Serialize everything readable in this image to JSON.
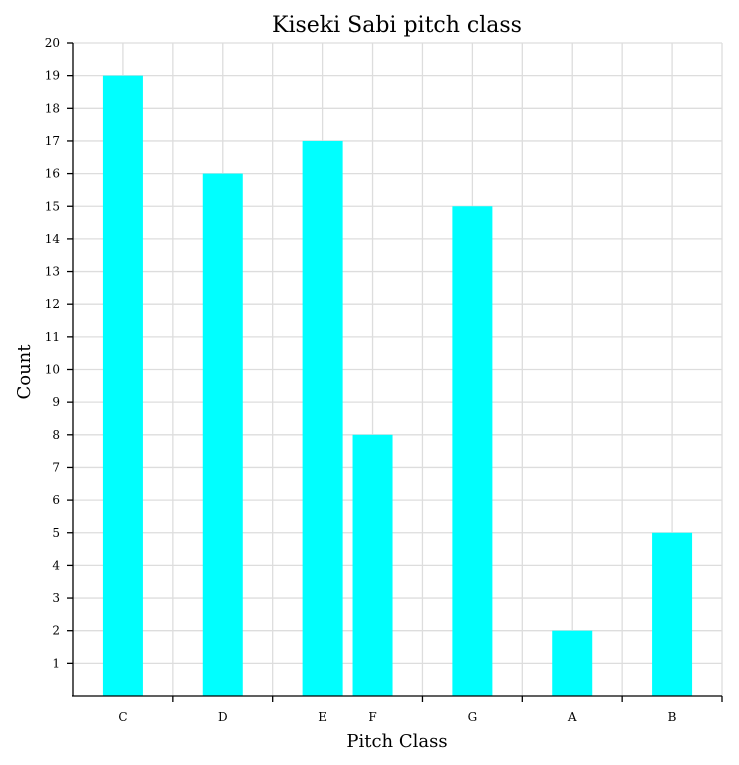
{
  "chart_data": {
    "type": "bar",
    "title": "Kiseki Sabi pitch class",
    "xlabel": "Pitch Class",
    "ylabel": "Count",
    "x_ticks": [
      0,
      1,
      2,
      3,
      4,
      5,
      6,
      7,
      8,
      9,
      10,
      11,
      12
    ],
    "categories": [
      {
        "label": "C",
        "x": 0
      },
      {
        "label": "D",
        "x": 2
      },
      {
        "label": "E",
        "x": 4
      },
      {
        "label": "F",
        "x": 5
      },
      {
        "label": "G",
        "x": 7
      },
      {
        "label": "A",
        "x": 9
      },
      {
        "label": "B",
        "x": 11
      }
    ],
    "values": [
      19,
      16,
      17,
      8,
      15,
      2,
      5
    ],
    "xlim": [
      -1,
      12
    ],
    "ylim": [
      0,
      20
    ],
    "yticks": [
      1,
      2,
      3,
      4,
      5,
      6,
      7,
      8,
      9,
      10,
      11,
      12,
      13,
      14,
      15,
      16,
      17,
      18,
      19,
      20
    ],
    "bar_color": "#00ffff",
    "grid": true
  }
}
